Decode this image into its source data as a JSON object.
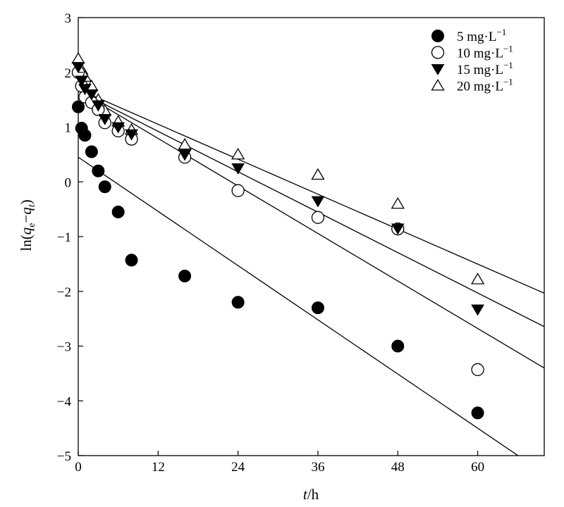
{
  "chart_data": {
    "type": "scatter",
    "title": "",
    "xlabel": "t/h",
    "ylabel": "ln(qe−qt)",
    "xlim": [
      0,
      70
    ],
    "ylim": [
      -5,
      3
    ],
    "grid": false,
    "legend_position": "top-right",
    "x_ticks": [
      "0",
      "12",
      "24",
      "36",
      "48",
      "60"
    ],
    "y_ticks": [
      "3",
      "2",
      "1",
      "0",
      "−1",
      "−2",
      "−3",
      "−4",
      "−5"
    ],
    "series": [
      {
        "name": "5 mg·L−1",
        "marker": "filled-circle",
        "x": [
          0,
          0.5,
          1,
          2,
          3,
          4,
          6,
          8,
          16,
          24,
          36,
          48,
          60
        ],
        "y": [
          1.37,
          0.98,
          0.85,
          0.55,
          0.2,
          -0.09,
          -0.55,
          -1.43,
          -1.72,
          -2.2,
          -2.3,
          -3.0,
          -4.22
        ],
        "fit": {
          "intercept": 0.45,
          "slope": -0.0825
        }
      },
      {
        "name": "10 mg·L−1",
        "marker": "open-circle",
        "x": [
          0,
          0.5,
          1,
          2,
          3,
          4,
          6,
          8,
          16,
          24,
          36,
          48,
          60
        ],
        "y": [
          2.0,
          1.75,
          1.55,
          1.45,
          1.32,
          1.08,
          0.93,
          0.78,
          0.45,
          -0.16,
          -0.65,
          -0.86,
          -3.43
        ],
        "fit": {
          "intercept": 1.66,
          "slope": -0.0723
        }
      },
      {
        "name": "15 mg·L−1",
        "marker": "filled-triangle-down",
        "x": [
          0,
          0.5,
          1,
          2,
          3,
          4,
          6,
          8,
          16,
          24,
          36,
          48,
          60
        ],
        "y": [
          2.1,
          1.85,
          1.7,
          1.6,
          1.4,
          1.15,
          1.0,
          0.87,
          0.5,
          0.25,
          -0.35,
          -0.85,
          -2.33
        ],
        "fit": {
          "intercept": 1.66,
          "slope": -0.0615
        }
      },
      {
        "name": "20 mg·L−1",
        "marker": "open-triangle-up",
        "x": [
          0,
          0.5,
          1,
          2,
          3,
          4,
          6,
          8,
          16,
          24,
          36,
          48,
          60
        ],
        "y": [
          2.25,
          2.05,
          1.92,
          1.75,
          1.5,
          1.3,
          1.1,
          0.95,
          0.68,
          0.5,
          0.13,
          -0.4,
          -1.78
        ],
        "fit": {
          "intercept": 1.69,
          "slope": -0.0532
        }
      }
    ]
  }
}
